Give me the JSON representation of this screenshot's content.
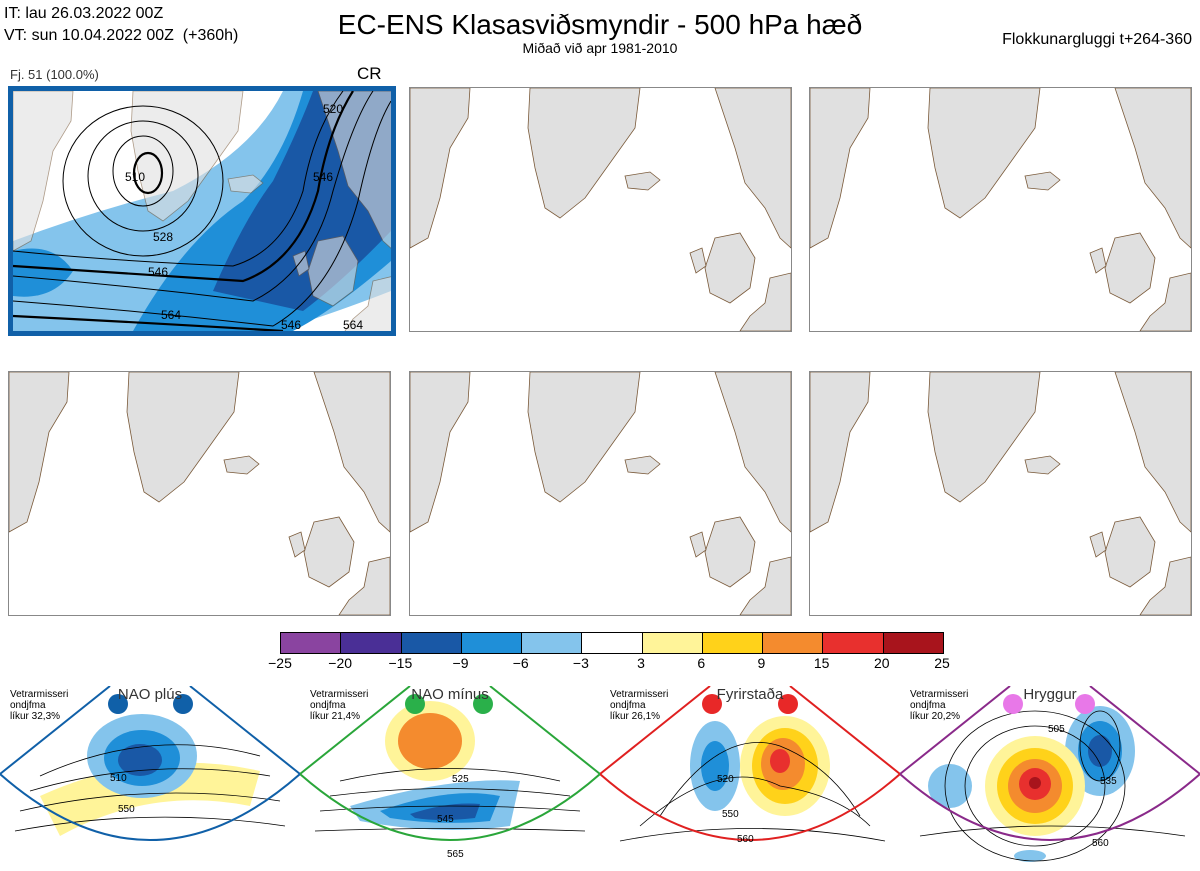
{
  "header": {
    "it_line": "IT: lau 26.03.2022 00Z",
    "vt_line": "VT: sun 10.04.2022 00Z  (+360h)",
    "title": "EC-ENS Klasasviðsmyndir - 500 hPa hæð",
    "subtitle": "Miðað við apr 1981-2010",
    "window": "Flokkunargluggi t+264-360"
  },
  "panel_main": {
    "cluster_label": "Fj. 51 (100.0%)",
    "regime": "CR",
    "contour_labels": [
      "510",
      "528",
      "546",
      "564",
      "520",
      "546",
      "546",
      "564"
    ]
  },
  "colorbar": {
    "colors": [
      "#8a44a0",
      "#4a2f96",
      "#1958a6",
      "#1f8fd8",
      "#84c4ec",
      "#ffffff",
      "#fff499",
      "#ffd21a",
      "#f48b2e",
      "#e8302e",
      "#a8141c"
    ],
    "ticks": [
      "−25",
      "−20",
      "−15",
      "−9",
      "−6",
      "−3",
      "3",
      "6",
      "9",
      "15",
      "20",
      "25"
    ]
  },
  "regimes": [
    {
      "name": "NAO plús",
      "note": "Vetrarmisseri\nondjfma\nlíkur 32,3%",
      "color": "#1060a8",
      "dot": "#1060a8",
      "labels": [
        "510",
        "550"
      ]
    },
    {
      "name": "NAO mínus",
      "note": "Vetrarmisseri\nondjfma\nlíkur 21,4%",
      "color": "#2aa63a",
      "dot": "#2ab04a",
      "labels": [
        "525",
        "545",
        "565"
      ]
    },
    {
      "name": "Fyrirstaða",
      "note": "Vetrarmisseri\nondjfma\nlíkur 26,1%",
      "color": "#e02020",
      "dot": "#e82828",
      "labels": [
        "520",
        "550",
        "560"
      ]
    },
    {
      "name": "Hryggur",
      "note": "Vetrarmisseri\nondjfma\nlíkur 20,2%",
      "color": "#8a2a8a",
      "dot": "#e878e8",
      "labels": [
        "505",
        "535",
        "560"
      ]
    }
  ]
}
